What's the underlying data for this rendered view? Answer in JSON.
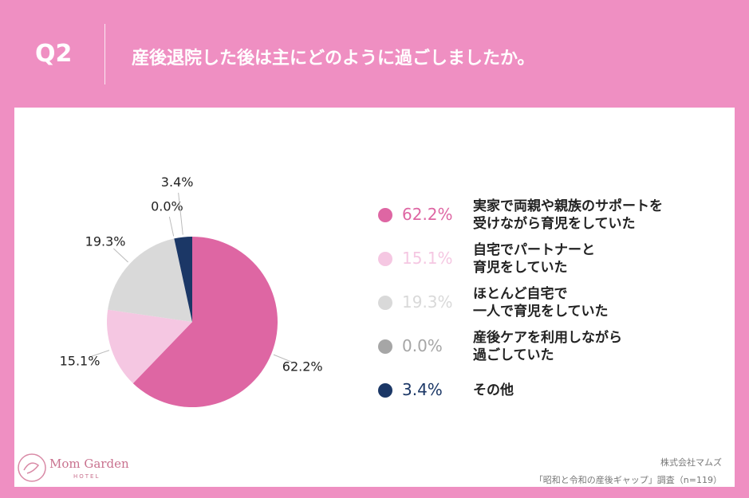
{
  "header": {
    "label": "Q2"
  },
  "chart_data": {
    "type": "pie",
    "title": "産後退院した後は主にどのように過ごしましたか。",
    "categories": [
      "実家で両親や親族のサポートを\n受けながら育児をしていた",
      "自宅でパートナーと\n育児をしていた",
      "ほとんど自宅で\n一人で育児をしていた",
      "産後ケアを利用しながら\n過ごしていた",
      "その他"
    ],
    "values": [
      62.2,
      15.1,
      19.3,
      0.0,
      3.4
    ],
    "value_labels": [
      "62.2%",
      "15.1%",
      "19.3%",
      "0.0%",
      "3.4%"
    ],
    "colors": [
      "#de66a3",
      "#f5c7e2",
      "#d9d9d9",
      "#a6a6a6",
      "#1b3766"
    ]
  },
  "logo": {
    "name": "Mom Garden",
    "sub": "HOTEL"
  },
  "footer": {
    "company": "株式会社マムズ",
    "source": "「昭和と令和の産後ギャップ」調査（n=119）"
  }
}
